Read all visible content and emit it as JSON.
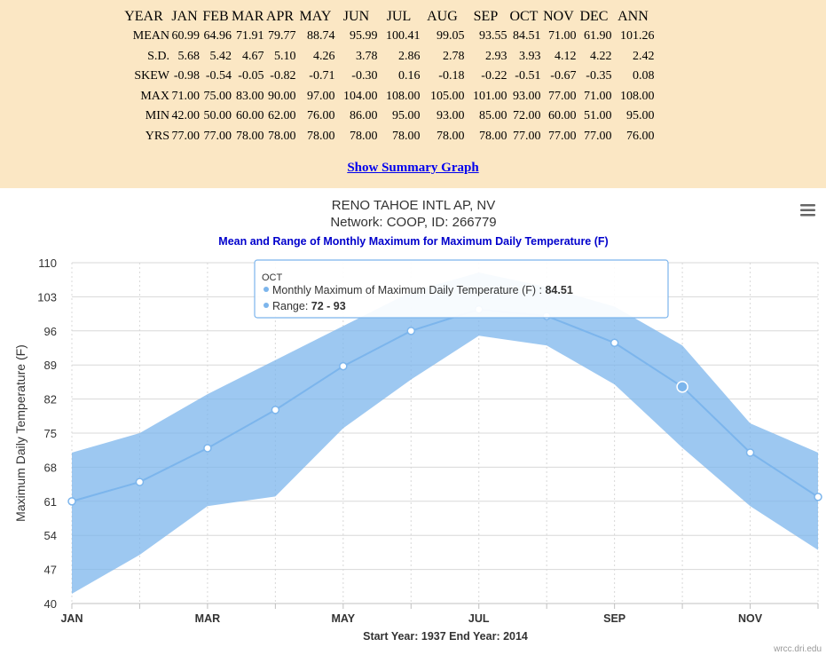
{
  "stats": {
    "headers": [
      "YEAR",
      "JAN",
      "FEB",
      "MAR",
      "APR",
      "MAY",
      "JUN",
      "JUL",
      "AUG",
      "SEP",
      "OCT",
      "NOV",
      "DEC",
      "ANN"
    ],
    "rows": [
      {
        "label": "MEAN",
        "values": [
          "60.99",
          "64.96",
          "71.91",
          "79.77",
          "88.74",
          "95.99",
          "100.41",
          "99.05",
          "93.55",
          "84.51",
          "71.00",
          "61.90",
          "101.26"
        ]
      },
      {
        "label": "S.D.",
        "values": [
          "5.68",
          "5.42",
          "4.67",
          "5.10",
          "4.26",
          "3.78",
          "2.86",
          "2.78",
          "2.93",
          "3.93",
          "4.12",
          "4.22",
          "2.42"
        ]
      },
      {
        "label": "SKEW",
        "values": [
          "-0.98",
          "-0.54",
          "-0.05",
          "-0.82",
          "-0.71",
          "-0.30",
          "0.16",
          "-0.18",
          "-0.22",
          "-0.51",
          "-0.67",
          "-0.35",
          "0.08"
        ]
      },
      {
        "label": "MAX",
        "values": [
          "71.00",
          "75.00",
          "83.00",
          "90.00",
          "97.00",
          "104.00",
          "108.00",
          "105.00",
          "101.00",
          "93.00",
          "77.00",
          "71.00",
          "108.00"
        ]
      },
      {
        "label": "MIN",
        "values": [
          "42.00",
          "50.00",
          "60.00",
          "62.00",
          "76.00",
          "86.00",
          "95.00",
          "93.00",
          "85.00",
          "72.00",
          "60.00",
          "51.00",
          "95.00"
        ]
      },
      {
        "label": "YRS",
        "values": [
          "77.00",
          "77.00",
          "78.00",
          "78.00",
          "78.00",
          "78.00",
          "78.00",
          "78.00",
          "78.00",
          "77.00",
          "77.00",
          "77.00",
          "76.00"
        ]
      }
    ],
    "summary_link": "Show Summary Graph"
  },
  "chart_data": {
    "type": "area",
    "title": "RENO TAHOE INTL AP, NV",
    "subtitle_line": "Network: COOP, ID: 266779",
    "subtitle": "Mean and Range of Monthly Maximum for Maximum Daily Temperature (F)",
    "ylabel": "Maximum Daily Temperature (F)",
    "xlabel": "Start Year: 1937 End Year: 2014",
    "categories": [
      "JAN",
      "FEB",
      "MAR",
      "APR",
      "MAY",
      "JUN",
      "JUL",
      "AUG",
      "SEP",
      "OCT",
      "NOV",
      "DEC"
    ],
    "x_tick_labels": [
      "JAN",
      "MAR",
      "MAY",
      "JUL",
      "SEP",
      "NOV"
    ],
    "y_ticks": [
      40,
      47,
      54,
      61,
      68,
      75,
      82,
      89,
      96,
      103,
      110
    ],
    "ylim": [
      40,
      110
    ],
    "series": [
      {
        "name": "Monthly Maximum of Maximum Daily Temperature (F)",
        "type": "line",
        "values": [
          60.99,
          64.96,
          71.91,
          79.77,
          88.74,
          95.99,
          100.41,
          99.05,
          93.55,
          84.51,
          71.0,
          61.9
        ]
      },
      {
        "name": "Range",
        "type": "arearange",
        "low": [
          42,
          50,
          60,
          62,
          76,
          86,
          95,
          93,
          85,
          72,
          60,
          51
        ],
        "high": [
          71,
          75,
          83,
          90,
          97,
          104,
          108,
          105,
          101,
          93,
          77,
          71
        ]
      }
    ],
    "grid": true,
    "colors": {
      "line": "#7cb5ec",
      "range": "#7cb5ec",
      "title": "#333333",
      "subtitle": "#0000cc"
    },
    "tooltip": {
      "header": "OCT",
      "line_label": "Monthly Maximum of Maximum Daily Temperature (F)",
      "line_value": "84.51",
      "range_label": "Range",
      "range_value": "72 - 93",
      "hovered_index": 9
    },
    "credit": "wrcc.dri.edu",
    "menu_icon": "hamburger-icon"
  }
}
